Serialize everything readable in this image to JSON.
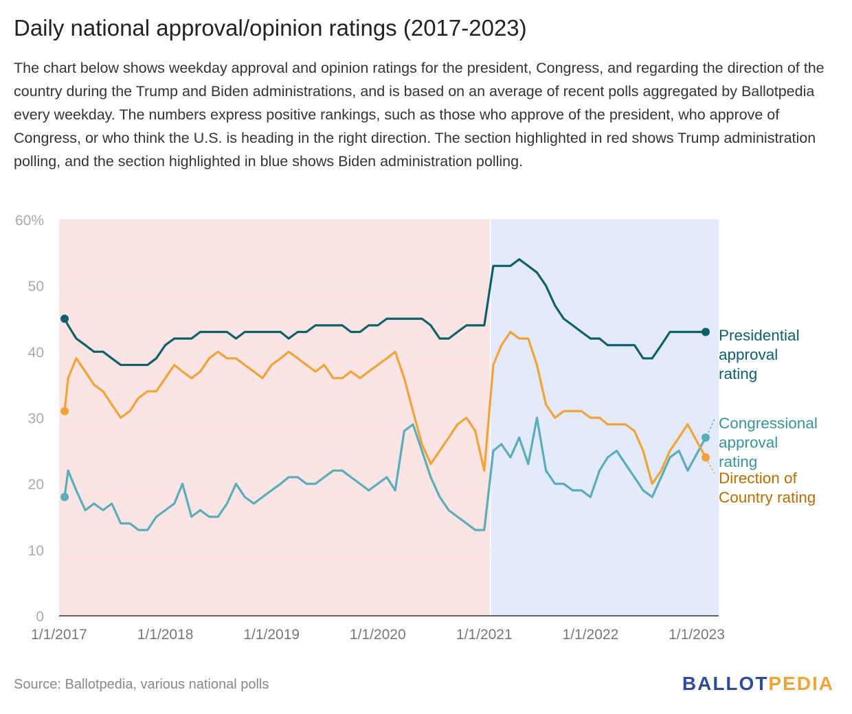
{
  "header": {
    "title": "Daily national approval/opinion ratings (2017-2023)",
    "description": "The chart below shows weekday approval and opinion ratings for the president, Congress, and regarding the direction of the country during the Trump and Biden administrations, and is based on an average of recent polls aggregated by Ballotpedia every weekday. The numbers express positive rankings, such as those who approve of the president, who approve of Congress, or who think the U.S. is heading in the right direction. The section highlighted in red shows Trump administration polling, and the section highlighted in blue shows Biden administration polling."
  },
  "footer": {
    "source": "Source: Ballotpedia, various national polls",
    "logo_part1": "BALLOT",
    "logo_part2": "PEDIA"
  },
  "chart_data": {
    "type": "line",
    "xlabel": "",
    "ylabel": "",
    "xlim": [
      "2017-01-01",
      "2023-03-03"
    ],
    "ylim": [
      0,
      60
    ],
    "grid": true,
    "y_ticks": [
      0,
      10,
      20,
      30,
      40,
      50,
      60
    ],
    "y_tick_labels": [
      "0",
      "10",
      "20",
      "30",
      "40",
      "50",
      "60%"
    ],
    "x_ticks": [
      "2017-01-01",
      "2018-01-01",
      "2019-01-01",
      "2020-01-01",
      "2021-01-01",
      "2022-01-01",
      "2023-01-01"
    ],
    "x_tick_labels": [
      "1/1/2017",
      "1/1/2018",
      "1/1/2019",
      "1/1/2020",
      "1/1/2021",
      "1/1/2022",
      "1/1/2023"
    ],
    "legend": "right, direct labels at line ends",
    "shaded_regions": [
      {
        "start": "2017-01-20",
        "end": "2021-01-20",
        "color": "#fbe4e4"
      },
      {
        "start": "2021-01-20",
        "end": "2023-03-03",
        "color": "#e3eafc"
      }
    ],
    "x": [
      "2017-01",
      "2017-02",
      "2017-03",
      "2017-04",
      "2017-05",
      "2017-06",
      "2017-07",
      "2017-08",
      "2017-09",
      "2017-10",
      "2017-11",
      "2017-12",
      "2018-01",
      "2018-02",
      "2018-03",
      "2018-04",
      "2018-05",
      "2018-06",
      "2018-07",
      "2018-08",
      "2018-09",
      "2018-10",
      "2018-11",
      "2018-12",
      "2019-01",
      "2019-02",
      "2019-03",
      "2019-04",
      "2019-05",
      "2019-06",
      "2019-07",
      "2019-08",
      "2019-09",
      "2019-10",
      "2019-11",
      "2019-12",
      "2020-01",
      "2020-02",
      "2020-03",
      "2020-04",
      "2020-05",
      "2020-06",
      "2020-07",
      "2020-08",
      "2020-09",
      "2020-10",
      "2020-11",
      "2020-12",
      "2021-01",
      "2021-02",
      "2021-03",
      "2021-04",
      "2021-05",
      "2021-06",
      "2021-07",
      "2021-08",
      "2021-09",
      "2021-10",
      "2021-11",
      "2021-12",
      "2022-01",
      "2022-02",
      "2022-03",
      "2022-04",
      "2022-05",
      "2022-06",
      "2022-07",
      "2022-08",
      "2022-09",
      "2022-10",
      "2022-11",
      "2022-12",
      "2023-01"
    ],
    "series": [
      {
        "name": "Presidential approval rating",
        "color": "#0e6068",
        "label_color": "#0e6068",
        "values": [
          45,
          44,
          42,
          41,
          40,
          40,
          39,
          38,
          38,
          38,
          38,
          39,
          41,
          42,
          42,
          42,
          43,
          43,
          43,
          43,
          42,
          43,
          43,
          43,
          43,
          43,
          42,
          43,
          43,
          44,
          44,
          44,
          44,
          43,
          43,
          44,
          44,
          45,
          45,
          45,
          45,
          45,
          44,
          42,
          42,
          43,
          44,
          44,
          44,
          53,
          53,
          53,
          54,
          53,
          52,
          50,
          47,
          45,
          44,
          43,
          42,
          42,
          41,
          41,
          41,
          41,
          39,
          39,
          41,
          43,
          43,
          43,
          43
        ]
      },
      {
        "name": "Congressional approval rating",
        "color": "#5aacb8",
        "label_color": "#3a939f",
        "values": [
          18,
          22,
          19,
          16,
          17,
          16,
          17,
          14,
          14,
          13,
          13,
          15,
          16,
          17,
          20,
          15,
          16,
          15,
          15,
          17,
          20,
          18,
          17,
          18,
          19,
          20,
          21,
          21,
          20,
          20,
          21,
          22,
          22,
          21,
          20,
          19,
          20,
          21,
          19,
          28,
          29,
          25,
          21,
          18,
          16,
          15,
          14,
          13,
          13,
          25,
          26,
          24,
          27,
          23,
          30,
          22,
          20,
          20,
          19,
          19,
          18,
          22,
          24,
          25,
          23,
          21,
          19,
          18,
          21,
          24,
          25,
          22,
          27
        ]
      },
      {
        "name": "Direction of Country rating",
        "color": "#f0a336",
        "label_color": "#b86e00",
        "values": [
          31,
          36,
          39,
          37,
          35,
          34,
          32,
          30,
          31,
          33,
          34,
          34,
          36,
          38,
          37,
          36,
          37,
          39,
          40,
          39,
          39,
          38,
          37,
          36,
          38,
          39,
          40,
          39,
          38,
          37,
          38,
          36,
          36,
          37,
          36,
          37,
          38,
          39,
          40,
          36,
          31,
          26,
          23,
          25,
          27,
          29,
          30,
          28,
          22,
          38,
          41,
          43,
          42,
          42,
          38,
          32,
          30,
          31,
          31,
          31,
          30,
          30,
          29,
          29,
          29,
          28,
          25,
          20,
          22,
          25,
          27,
          29,
          24
        ]
      }
    ]
  }
}
